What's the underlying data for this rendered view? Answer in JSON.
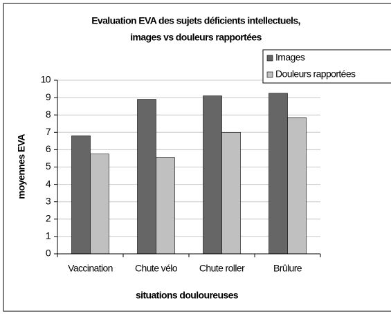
{
  "chart_data": {
    "type": "bar",
    "title": [
      "Evaluation EVA des sujets déficients intellectuels,",
      "images vs douleurs rapportées"
    ],
    "x_label": "situations douloureuses",
    "y_label": "moyennes EVA",
    "categories": [
      "Vaccination",
      "Chute vélo",
      "Chute roller",
      "Brûlure"
    ],
    "series": [
      {
        "name": "Images",
        "color": "#666666",
        "values": [
          6.8,
          8.9,
          9.1,
          9.25
        ]
      },
      {
        "name": "Douleurs rapportées",
        "color": "#c0c0c0",
        "values": [
          5.75,
          5.55,
          7.0,
          7.85
        ]
      }
    ],
    "ylim": [
      0,
      10
    ],
    "yticks": [
      0,
      1,
      2,
      3,
      4,
      5,
      6,
      7,
      8,
      9,
      10
    ],
    "grid": true,
    "legend": "top-right"
  }
}
